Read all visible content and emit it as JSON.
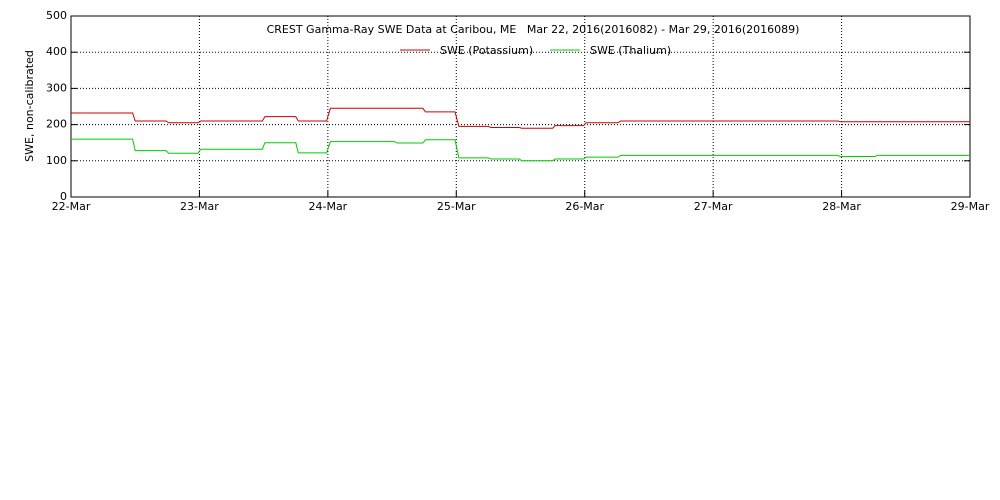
{
  "chart_data": {
    "type": "line",
    "title": "CREST Gamma-Ray SWE Data at Caribou, ME   Mar 22, 2016(2016082) - Mar 29, 2016(2016089)",
    "y_label": "SWE, non-calibrated",
    "x": [
      0,
      0.48,
      0.5,
      0.74,
      0.76,
      0.99,
      1.01,
      1.49,
      1.51,
      1.75,
      1.77,
      1.99,
      2.02,
      2.52,
      2.54,
      2.74,
      2.76,
      2.99,
      3.02,
      3.25,
      3.27,
      3.49,
      3.51,
      3.75,
      3.77,
      3.99,
      4.01,
      4.26,
      4.28,
      5.97,
      5.99,
      6.26,
      6.28,
      7
    ],
    "series": [
      {
        "name": "SWE (Potassium)",
        "color": "#cc0000",
        "values": [
          232,
          232,
          210,
          210,
          205,
          205,
          210,
          210,
          222,
          222,
          210,
          210,
          245,
          245,
          245,
          245,
          235,
          235,
          195,
          195,
          192,
          192,
          190,
          190,
          197,
          197,
          205,
          205,
          210,
          210,
          208,
          208,
          208,
          208
        ]
      },
      {
        "name": "SWE (Thalium)",
        "color": "#00cc00",
        "values": [
          160,
          160,
          128,
          128,
          121,
          121,
          132,
          132,
          150,
          150,
          122,
          122,
          153,
          153,
          149,
          149,
          158,
          158,
          108,
          108,
          105,
          105,
          100,
          100,
          105,
          105,
          110,
          110,
          115,
          115,
          112,
          112,
          115,
          115
        ]
      }
    ],
    "xlim": [
      0,
      7
    ],
    "xticks": [
      {
        "value": 0,
        "label": "22-Mar"
      },
      {
        "value": 1,
        "label": "23-Mar"
      },
      {
        "value": 2,
        "label": "24-Mar"
      },
      {
        "value": 3,
        "label": "25-Mar"
      },
      {
        "value": 4,
        "label": "26-Mar"
      },
      {
        "value": 5,
        "label": "27-Mar"
      },
      {
        "value": 6,
        "label": "28-Mar"
      },
      {
        "value": 7,
        "label": "29-Mar"
      }
    ],
    "ylim": [
      0,
      500
    ],
    "yticks": [
      0,
      100,
      200,
      300,
      400,
      500
    ],
    "grid": true
  }
}
